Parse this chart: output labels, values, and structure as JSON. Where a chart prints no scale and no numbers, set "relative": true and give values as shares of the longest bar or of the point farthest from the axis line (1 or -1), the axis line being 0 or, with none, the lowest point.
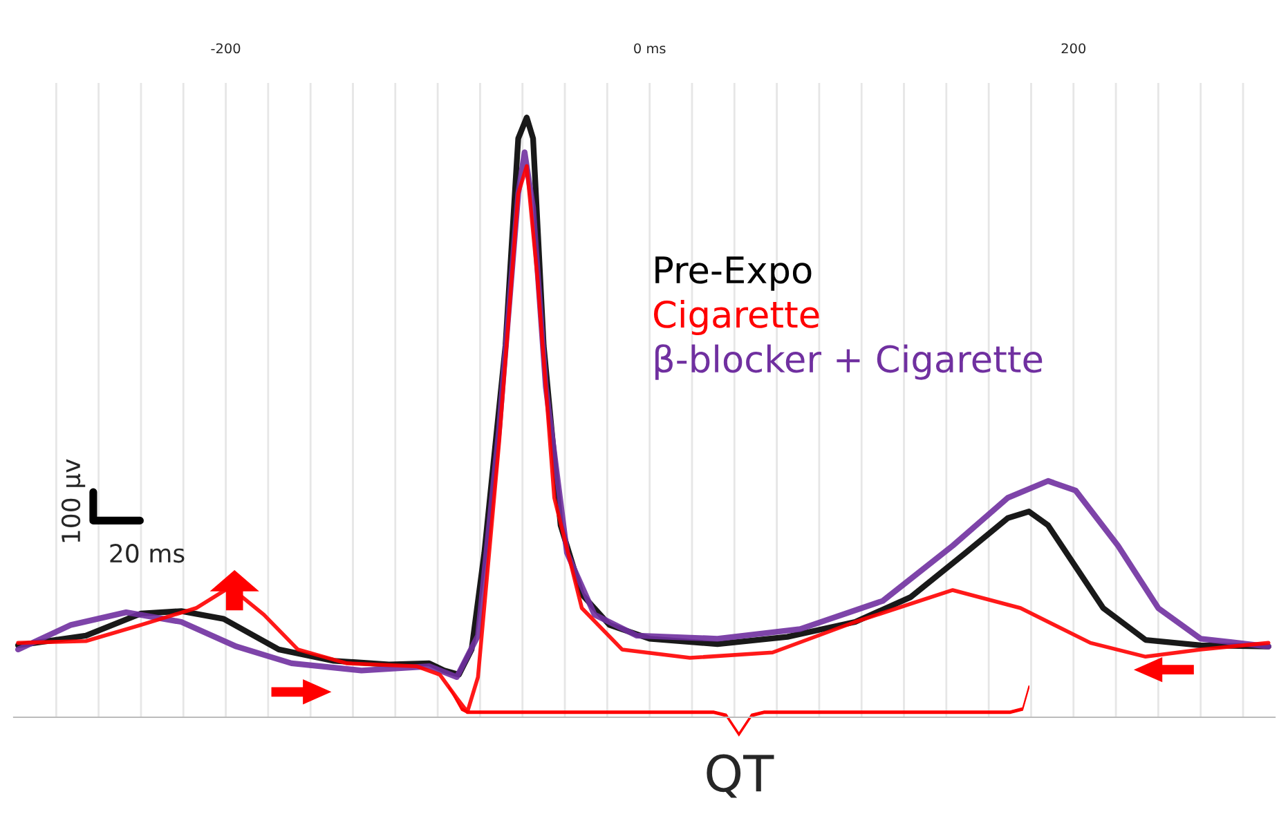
{
  "chart_data": {
    "type": "line",
    "relative": true,
    "xlim": [
      -300,
      295
    ],
    "xticks": [
      {
        "value": -280,
        "label": null
      },
      {
        "value": -260,
        "label": null
      },
      {
        "value": -240,
        "label": null
      },
      {
        "value": -220,
        "label": null
      },
      -200,
      {
        "value": -180,
        "label": null
      },
      {
        "value": -160,
        "label": null
      },
      {
        "value": -140,
        "label": null
      },
      {
        "value": -120,
        "label": null
      },
      {
        "value": -100,
        "label": null
      },
      {
        "value": -80,
        "label": null
      },
      {
        "value": -60,
        "label": null
      },
      {
        "value": -40,
        "label": null
      },
      {
        "value": -20,
        "label": null
      },
      {
        "value": 0,
        "label": "0 ms"
      },
      {
        "value": 20,
        "label": null
      },
      {
        "value": 40,
        "label": null
      },
      {
        "value": 60,
        "label": null
      },
      {
        "value": 80,
        "label": null
      },
      {
        "value": 100,
        "label": null
      },
      {
        "value": 120,
        "label": null
      },
      {
        "value": 140,
        "label": null
      },
      {
        "value": 160,
        "label": null
      },
      {
        "value": 180,
        "label": null
      },
      200,
      {
        "value": 220,
        "label": null
      },
      {
        "value": 240,
        "label": null
      },
      {
        "value": 260,
        "label": null
      },
      {
        "value": 280,
        "label": null
      }
    ],
    "grid": "x",
    "legend": "right",
    "marker": "none",
    "line_style": "solid",
    "series": [
      {
        "name": "Pre-Expo",
        "color": "#000000",
        "x": [
          -298,
          -266,
          -240,
          -221,
          -201,
          -175,
          -149,
          -123,
          -104,
          -97,
          -90,
          -84,
          -78,
          -68,
          -62,
          -58,
          -55,
          -50,
          -42,
          -32,
          -19,
          0,
          32,
          65,
          97,
          123,
          149,
          169,
          179,
          188,
          201,
          214,
          234,
          260,
          292
        ],
        "values": [
          0.12,
          0.136,
          0.173,
          0.177,
          0.164,
          0.113,
          0.094,
          0.088,
          0.09,
          0.078,
          0.071,
          0.113,
          0.274,
          0.62,
          0.965,
          1.0,
          0.965,
          0.62,
          0.32,
          0.205,
          0.154,
          0.131,
          0.122,
          0.134,
          0.159,
          0.2,
          0.274,
          0.332,
          0.343,
          0.32,
          0.251,
          0.182,
          0.129,
          0.12,
          0.118
        ]
      },
      {
        "name": "Cigarette",
        "color": "#ff0000",
        "x": [
          -298,
          -266,
          -240,
          -214,
          -198,
          -182,
          -166,
          -143,
          -110,
          -99,
          -91,
          -86,
          -81,
          -71,
          -62,
          -58,
          -53,
          -45,
          -32,
          -13,
          19,
          58,
          97,
          143,
          175,
          208,
          234,
          260,
          292
        ],
        "values": [
          0.124,
          0.127,
          0.154,
          0.182,
          0.217,
          0.171,
          0.113,
          0.09,
          0.085,
          0.071,
          0.032,
          0.009,
          0.067,
          0.459,
          0.873,
          0.919,
          0.735,
          0.366,
          0.182,
          0.113,
          0.099,
          0.108,
          0.159,
          0.212,
          0.182,
          0.124,
          0.101,
          0.113,
          0.124
        ]
      },
      {
        "name": "β-blocker + Cigarette",
        "color": "#7030a0",
        "x": [
          -298,
          -273,
          -247,
          -221,
          -195,
          -169,
          -136,
          -104,
          -91,
          -81,
          -71,
          -62,
          -59,
          -55,
          -49,
          -39,
          -26,
          -6,
          32,
          71,
          110,
          143,
          169,
          188,
          201,
          221,
          240,
          260,
          292
        ],
        "values": [
          0.113,
          0.154,
          0.175,
          0.159,
          0.118,
          0.09,
          0.078,
          0.085,
          0.067,
          0.136,
          0.482,
          0.873,
          0.942,
          0.85,
          0.551,
          0.274,
          0.171,
          0.136,
          0.131,
          0.147,
          0.194,
          0.286,
          0.366,
          0.394,
          0.378,
          0.286,
          0.182,
          0.131,
          0.118
        ]
      }
    ],
    "annotations": [
      "100 µv",
      "20 ms",
      "QT"
    ]
  }
}
